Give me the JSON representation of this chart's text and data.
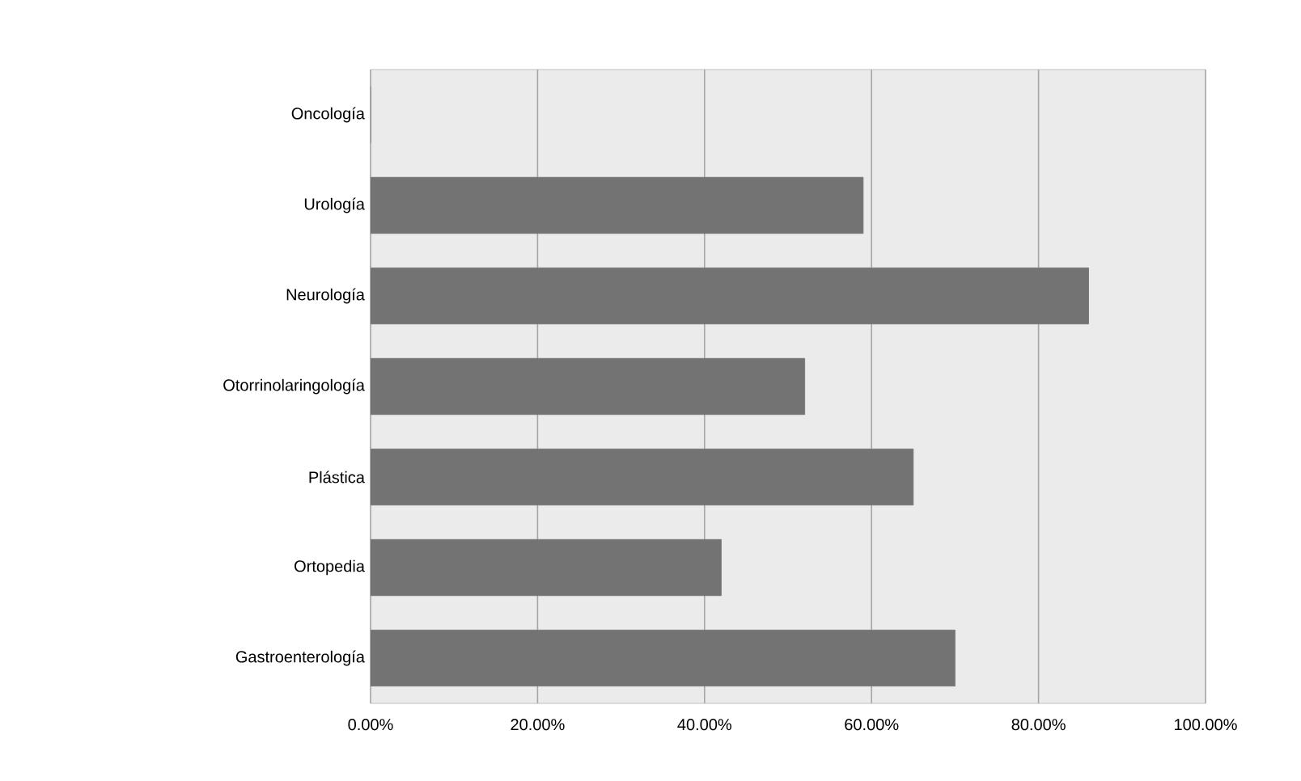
{
  "chart_data": {
    "type": "bar",
    "orientation": "horizontal",
    "categories": [
      "Oncología",
      "Urología",
      "Neurología",
      "Otorrinolaringología",
      "Plástica",
      "Ortopedia",
      "Gastroenterología"
    ],
    "values": [
      0,
      59,
      86,
      52,
      65,
      42,
      70
    ],
    "color": "#737373",
    "xlim": [
      0,
      100
    ],
    "xticks": [
      {
        "value": 0,
        "label": "0.00%"
      },
      {
        "value": 20,
        "label": "20.00%"
      },
      {
        "value": 40,
        "label": "40.00%"
      },
      {
        "value": 60,
        "label": "60.00%"
      },
      {
        "value": 80,
        "label": "80.00%"
      },
      {
        "value": 100,
        "label": "100.00%"
      }
    ],
    "grid": "x"
  }
}
